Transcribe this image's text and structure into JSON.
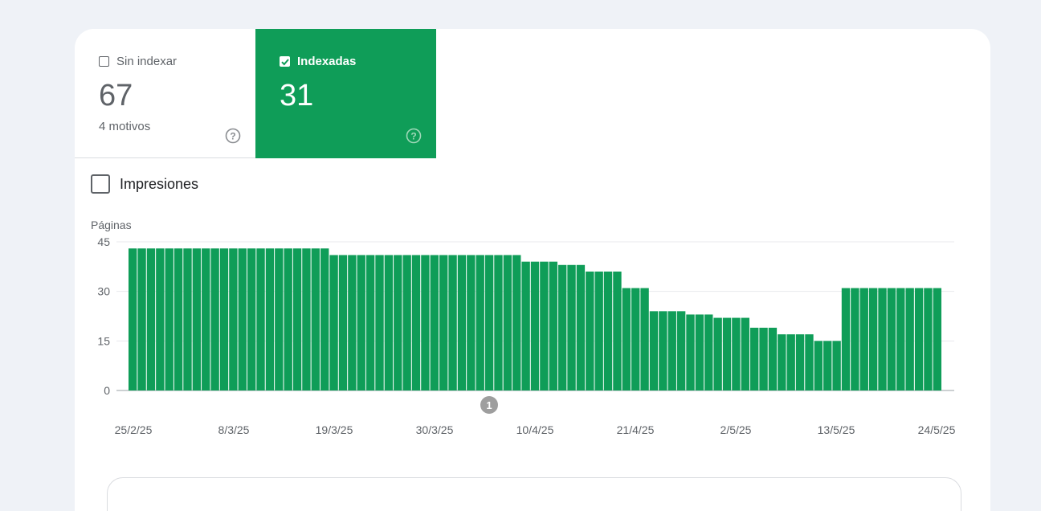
{
  "tabs": {
    "unindexed": {
      "label": "Sin indexar",
      "count": "67",
      "sub": "4 motivos",
      "checked": false
    },
    "indexed": {
      "label": "Indexadas",
      "count": "31",
      "checked": true
    }
  },
  "impressions": {
    "label": "Impresiones",
    "checked": false
  },
  "chart_data": {
    "type": "bar",
    "ylabel": "Páginas",
    "ylim": [
      0,
      45
    ],
    "yticks": [
      0,
      15,
      30,
      45
    ],
    "xticks": [
      "25/2/25",
      "8/3/25",
      "19/3/25",
      "30/3/25",
      "10/4/25",
      "21/4/25",
      "2/5/25",
      "13/5/25",
      "24/5/25"
    ],
    "annotation": {
      "label": "1",
      "date": "5/4/25"
    },
    "start_date": "25/2/25",
    "values": [
      43,
      43,
      43,
      43,
      43,
      43,
      43,
      43,
      43,
      43,
      43,
      43,
      43,
      43,
      43,
      43,
      43,
      43,
      43,
      43,
      43,
      43,
      41,
      41,
      41,
      41,
      41,
      41,
      41,
      41,
      41,
      41,
      41,
      41,
      41,
      41,
      41,
      41,
      41,
      41,
      41,
      41,
      41,
      39,
      39,
      39,
      39,
      38,
      38,
      38,
      36,
      36,
      36,
      36,
      31,
      31,
      31,
      24,
      24,
      24,
      24,
      23,
      23,
      23,
      22,
      22,
      22,
      22,
      19,
      19,
      19,
      17,
      17,
      17,
      17,
      15,
      15,
      15,
      31,
      31,
      31,
      31,
      31,
      31,
      31,
      31,
      31,
      31,
      31
    ],
    "color": "#0f9d58"
  }
}
